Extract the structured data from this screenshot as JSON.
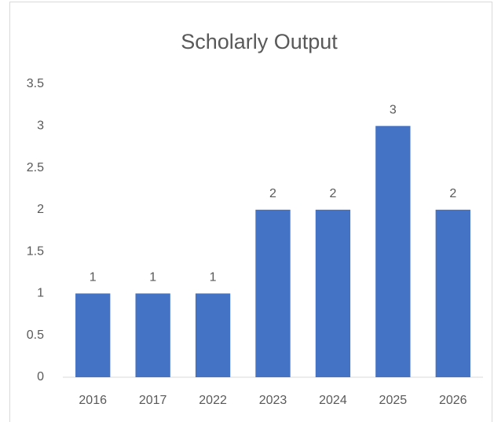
{
  "chart_data": {
    "type": "bar",
    "title": "Scholarly Output",
    "categories": [
      "2016",
      "2017",
      "2022",
      "2023",
      "2024",
      "2025",
      "2026"
    ],
    "values": [
      1,
      1,
      1,
      2,
      2,
      3,
      2
    ],
    "color": "#4472c4",
    "ylim": [
      0,
      3.5
    ],
    "yticks": [
      0,
      0.5,
      1,
      1.5,
      2,
      2.5,
      3,
      3.5
    ],
    "grid": false
  }
}
